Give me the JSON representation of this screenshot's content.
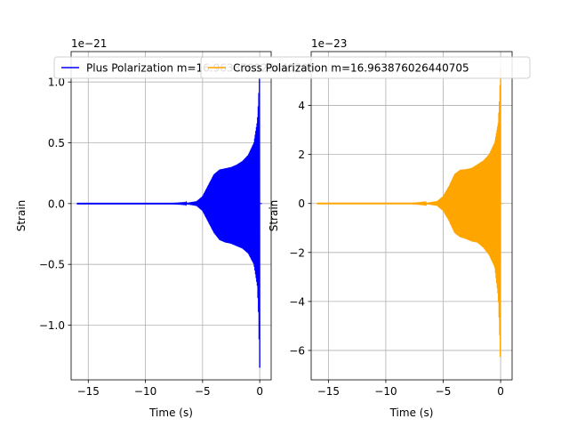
{
  "chart_data": [
    {
      "type": "line",
      "xlabel": "Time (s)",
      "ylabel": "Strain",
      "offset_text": "1e−21",
      "xlim": [
        -16.5,
        1.0
      ],
      "ylim": [
        -1.45,
        1.25
      ],
      "xticks": [
        -15,
        -10,
        -5,
        0
      ],
      "xtick_labels": [
        "−15",
        "−10",
        "−5",
        "0"
      ],
      "yticks": [
        -1.0,
        -0.5,
        0.0,
        0.5,
        1.0
      ],
      "ytick_labels": [
        "−1.0",
        "−0.5",
        "0.0",
        "0.5",
        "1.0"
      ],
      "grid": true,
      "legend_position": "top",
      "series": [
        {
          "name": "Plus Polarization m=16.963876026440705",
          "color": "#0000ff",
          "envelope_x": [
            -16,
            -8,
            -6.5,
            -5.5,
            -5.0,
            -4.5,
            -4.0,
            -3.5,
            -3.0,
            -2.5,
            -2.0,
            -1.5,
            -1.0,
            -0.5,
            -0.2,
            -0.1,
            0.0
          ],
          "envelope_y": [
            0.0,
            0.0,
            0.003,
            0.02,
            0.06,
            0.15,
            0.24,
            0.28,
            0.29,
            0.3,
            0.32,
            0.35,
            0.4,
            0.5,
            0.68,
            0.85,
            1.12
          ],
          "envelope_y_min": [
            0.0,
            0.0,
            -0.003,
            -0.02,
            -0.06,
            -0.15,
            -0.24,
            -0.3,
            -0.32,
            -0.33,
            -0.35,
            -0.37,
            -0.41,
            -0.5,
            -0.68,
            -0.9,
            -1.35
          ]
        }
      ]
    },
    {
      "type": "line",
      "xlabel": "Time (s)",
      "ylabel": "Strain",
      "offset_text": "1e−23",
      "xlim": [
        -16.5,
        1.0
      ],
      "ylim": [
        -7.2,
        6.2
      ],
      "xticks": [
        -15,
        -10,
        -5,
        0
      ],
      "xtick_labels": [
        "−15",
        "−10",
        "−5",
        "0"
      ],
      "yticks": [
        -6,
        -4,
        -2,
        0,
        2,
        4
      ],
      "ytick_labels": [
        "−6",
        "−4",
        "−2",
        "0",
        "2",
        "4"
      ],
      "grid": true,
      "legend_position": "top",
      "series": [
        {
          "name": "Cross Polarization m=16.963876026440705",
          "color": "#ffa500",
          "envelope_x": [
            -16,
            -8,
            -6.5,
            -5.5,
            -5.0,
            -4.5,
            -4.0,
            -3.5,
            -3.0,
            -2.5,
            -2.0,
            -1.5,
            -1.0,
            -0.5,
            -0.2,
            -0.1,
            0.0
          ],
          "envelope_y": [
            0.0,
            0.0,
            0.02,
            0.1,
            0.3,
            0.7,
            1.2,
            1.38,
            1.4,
            1.45,
            1.6,
            1.75,
            2.0,
            2.5,
            3.3,
            4.2,
            5.5
          ],
          "envelope_y_min": [
            0.0,
            0.0,
            -0.02,
            -0.1,
            -0.3,
            -0.7,
            -1.2,
            -1.38,
            -1.45,
            -1.55,
            -1.6,
            -1.8,
            -2.1,
            -2.6,
            -3.8,
            -5.0,
            -6.7
          ]
        }
      ]
    }
  ]
}
